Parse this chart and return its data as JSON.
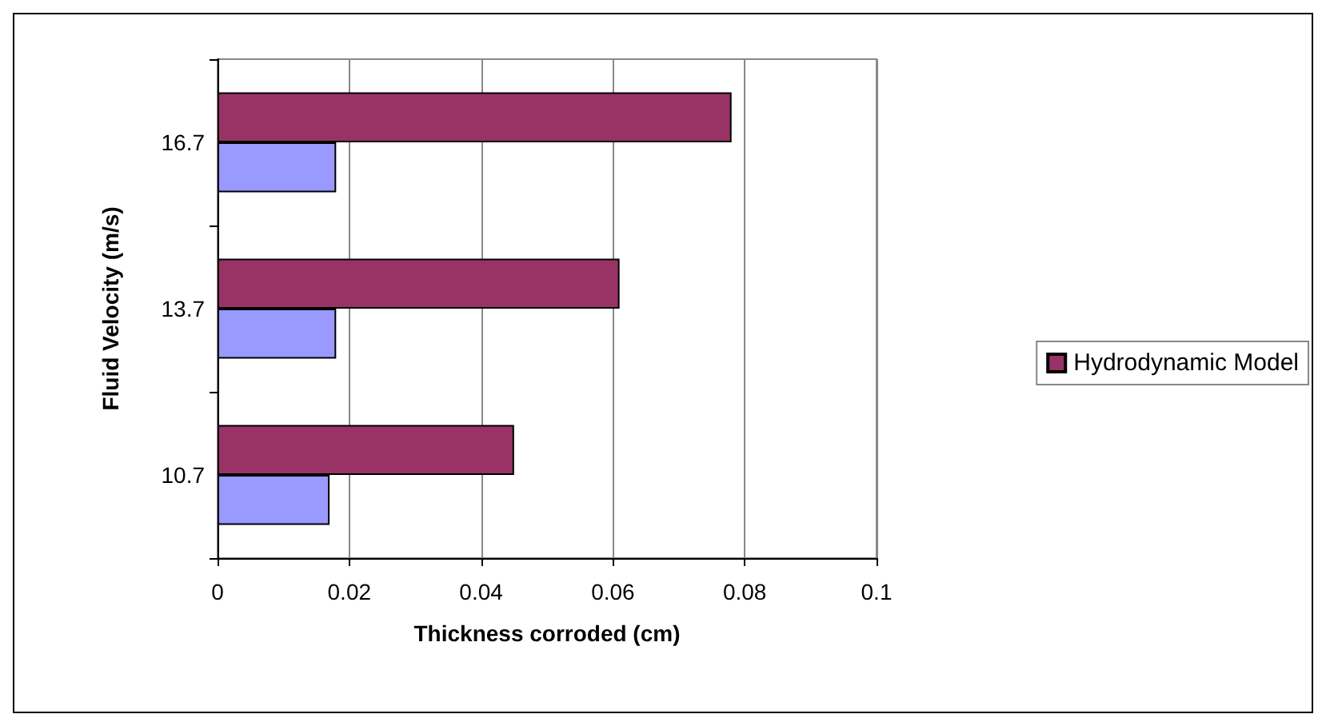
{
  "chart_data": {
    "type": "bar",
    "orientation": "horizontal",
    "xlabel": "Thickness corroded (cm)",
    "ylabel": "Fluid Velocity (m/s)",
    "categories": [
      "16.7",
      "13.7",
      "10.7"
    ],
    "series": [
      {
        "name": "Hydrodynamic Model",
        "color": "#993366",
        "values": [
          0.078,
          0.061,
          0.045
        ]
      },
      {
        "color": "#9999ff",
        "values": [
          0.018,
          0.018,
          0.017
        ]
      }
    ],
    "xlim": [
      0,
      0.1
    ],
    "xticks": [
      0,
      0.02,
      0.04,
      0.06,
      0.08,
      0.1
    ],
    "grid": "x",
    "legend": "right"
  }
}
